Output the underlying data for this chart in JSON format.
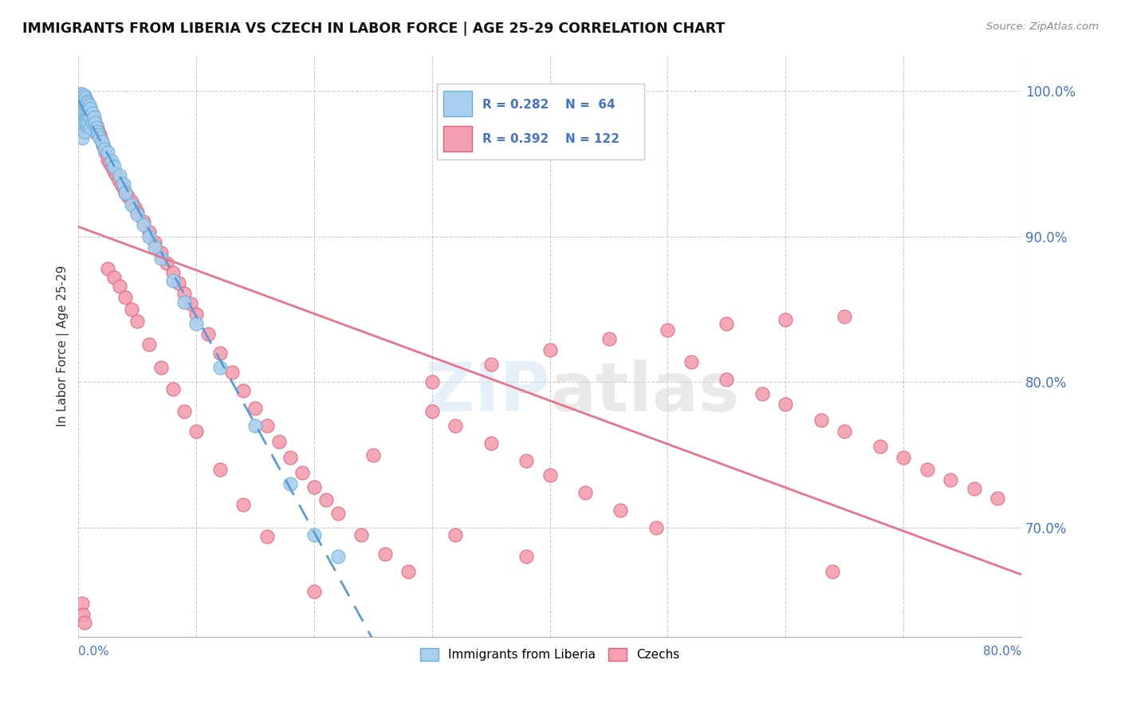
{
  "title": "IMMIGRANTS FROM LIBERIA VS CZECH IN LABOR FORCE | AGE 25-29 CORRELATION CHART",
  "source": "Source: ZipAtlas.com",
  "ylabel": "In Labor Force | Age 25-29",
  "legend_R_liberia": "R = 0.282",
  "legend_N_liberia": "N =  64",
  "legend_R_czech": "R = 0.392",
  "legend_N_czech": "N = 122",
  "legend_label_liberia": "Immigrants from Liberia",
  "legend_label_czech": "Czechs",
  "color_liberia_fill": "#A8CFEE",
  "color_liberia_edge": "#6BAED6",
  "color_czech_fill": "#F4A0B0",
  "color_czech_edge": "#E06080",
  "color_trendline_liberia": "#5B9BD5",
  "color_trendline_czech": "#E8748A",
  "color_axis_labels": "#4472C4",
  "xmin": 0.0,
  "xmax": 0.8,
  "ymin": 0.625,
  "ymax": 1.025,
  "ytick_vals": [
    0.7,
    0.8,
    0.9,
    1.0
  ],
  "ytick_labels": [
    "70.0%",
    "80.0%",
    "90.0%",
    "100.0%"
  ],
  "liberia_x": [
    0.002,
    0.002,
    0.002,
    0.003,
    0.003,
    0.003,
    0.003,
    0.003,
    0.003,
    0.004,
    0.004,
    0.004,
    0.004,
    0.005,
    0.005,
    0.005,
    0.005,
    0.005,
    0.006,
    0.006,
    0.006,
    0.006,
    0.007,
    0.007,
    0.007,
    0.007,
    0.008,
    0.008,
    0.008,
    0.009,
    0.009,
    0.01,
    0.01,
    0.01,
    0.012,
    0.012,
    0.013,
    0.014,
    0.015,
    0.016,
    0.017,
    0.018,
    0.02,
    0.022,
    0.025,
    0.028,
    0.03,
    0.035,
    0.038,
    0.04,
    0.045,
    0.05,
    0.055,
    0.06,
    0.065,
    0.07,
    0.08,
    0.09,
    0.1,
    0.12,
    0.15,
    0.18,
    0.2,
    0.22
  ],
  "liberia_y": [
    0.995,
    0.985,
    0.975,
    0.998,
    0.993,
    0.988,
    0.982,
    0.975,
    0.968,
    0.996,
    0.99,
    0.984,
    0.978,
    0.997,
    0.992,
    0.987,
    0.98,
    0.972,
    0.995,
    0.99,
    0.985,
    0.978,
    0.993,
    0.988,
    0.982,
    0.976,
    0.992,
    0.986,
    0.978,
    0.99,
    0.983,
    0.988,
    0.982,
    0.975,
    0.985,
    0.978,
    0.982,
    0.978,
    0.975,
    0.972,
    0.97,
    0.968,
    0.965,
    0.96,
    0.958,
    0.952,
    0.948,
    0.942,
    0.936,
    0.93,
    0.922,
    0.915,
    0.908,
    0.9,
    0.893,
    0.885,
    0.87,
    0.855,
    0.84,
    0.81,
    0.77,
    0.73,
    0.695,
    0.68
  ],
  "czech_x": [
    0.002,
    0.002,
    0.003,
    0.003,
    0.003,
    0.004,
    0.004,
    0.005,
    0.005,
    0.005,
    0.006,
    0.006,
    0.007,
    0.007,
    0.008,
    0.008,
    0.008,
    0.009,
    0.01,
    0.01,
    0.01,
    0.011,
    0.012,
    0.013,
    0.014,
    0.015,
    0.015,
    0.016,
    0.017,
    0.018,
    0.019,
    0.02,
    0.021,
    0.022,
    0.023,
    0.025,
    0.026,
    0.028,
    0.03,
    0.032,
    0.034,
    0.036,
    0.038,
    0.04,
    0.042,
    0.045,
    0.048,
    0.05,
    0.055,
    0.06,
    0.065,
    0.07,
    0.075,
    0.08,
    0.085,
    0.09,
    0.095,
    0.1,
    0.11,
    0.12,
    0.13,
    0.14,
    0.15,
    0.16,
    0.17,
    0.18,
    0.19,
    0.2,
    0.21,
    0.22,
    0.24,
    0.26,
    0.28,
    0.3,
    0.32,
    0.35,
    0.38,
    0.4,
    0.43,
    0.46,
    0.49,
    0.52,
    0.55,
    0.58,
    0.6,
    0.63,
    0.65,
    0.68,
    0.7,
    0.72,
    0.74,
    0.76,
    0.78,
    0.025,
    0.03,
    0.035,
    0.04,
    0.045,
    0.05,
    0.06,
    0.07,
    0.08,
    0.09,
    0.1,
    0.12,
    0.14,
    0.16,
    0.2,
    0.25,
    0.3,
    0.35,
    0.4,
    0.45,
    0.5,
    0.55,
    0.6,
    0.65,
    0.003,
    0.004,
    0.005,
    0.32,
    0.38,
    0.64
  ],
  "czech_y": [
    0.998,
    0.992,
    0.996,
    0.99,
    0.984,
    0.994,
    0.988,
    0.996,
    0.99,
    0.984,
    0.993,
    0.987,
    0.991,
    0.985,
    0.99,
    0.984,
    0.978,
    0.987,
    0.988,
    0.982,
    0.976,
    0.985,
    0.983,
    0.98,
    0.978,
    0.976,
    0.971,
    0.974,
    0.972,
    0.97,
    0.968,
    0.965,
    0.963,
    0.96,
    0.958,
    0.953,
    0.951,
    0.948,
    0.945,
    0.942,
    0.939,
    0.936,
    0.933,
    0.93,
    0.928,
    0.924,
    0.92,
    0.917,
    0.91,
    0.903,
    0.896,
    0.889,
    0.882,
    0.875,
    0.868,
    0.861,
    0.854,
    0.847,
    0.833,
    0.82,
    0.807,
    0.794,
    0.782,
    0.77,
    0.759,
    0.748,
    0.738,
    0.728,
    0.719,
    0.71,
    0.695,
    0.682,
    0.67,
    0.78,
    0.77,
    0.758,
    0.746,
    0.736,
    0.724,
    0.712,
    0.7,
    0.814,
    0.802,
    0.792,
    0.785,
    0.774,
    0.766,
    0.756,
    0.748,
    0.74,
    0.733,
    0.727,
    0.72,
    0.878,
    0.872,
    0.866,
    0.858,
    0.85,
    0.842,
    0.826,
    0.81,
    0.795,
    0.78,
    0.766,
    0.74,
    0.716,
    0.694,
    0.656,
    0.75,
    0.8,
    0.812,
    0.822,
    0.83,
    0.836,
    0.84,
    0.843,
    0.845,
    0.648,
    0.64,
    0.635,
    0.695,
    0.68,
    0.67
  ]
}
